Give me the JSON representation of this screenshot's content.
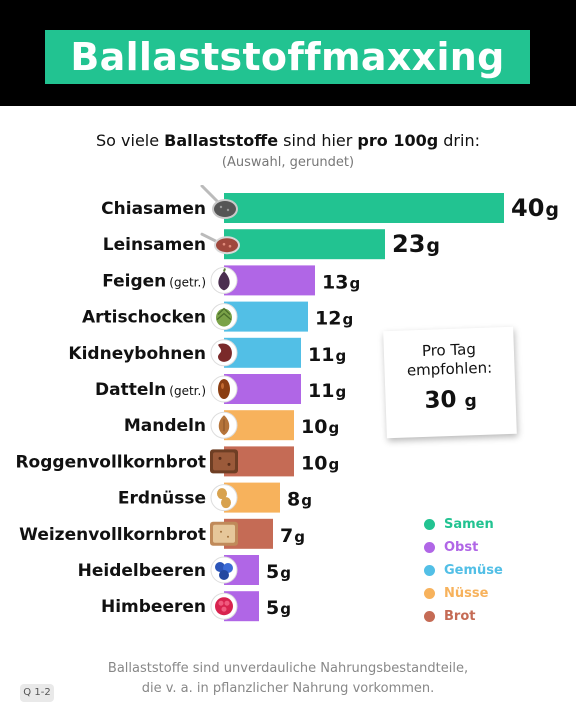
{
  "header": {
    "title": "Ballaststoffmaxxing"
  },
  "subtitle": {
    "part1": "So viele ",
    "bold1": "Ballaststoffe",
    "part2": " sind hier ",
    "bold2": "pro 100g",
    "part3": " drin:",
    "note": "(Auswahl, gerundet)"
  },
  "colors": {
    "Samen": "#22c391",
    "Obst": "#b066e6",
    "Gemüse": "#52bfe6",
    "Nüsse": "#f7b25c",
    "Brot": "#c56b55"
  },
  "chart_data": {
    "type": "bar",
    "orientation": "horizontal",
    "unit": "g",
    "categories": [
      "Chiasamen",
      "Leinsamen",
      "Feigen",
      "Artischocken",
      "Kidneybohnen",
      "Datteln",
      "Mandeln",
      "Roggenvollkornbrot",
      "Erdnüsse",
      "Weizenvollkornbrot",
      "Heidelbeeren",
      "Himbeeren"
    ],
    "qualifiers": [
      "",
      "",
      "(getr.)",
      "",
      "",
      "(getr.)",
      "",
      "",
      "",
      "",
      "",
      ""
    ],
    "values": [
      40,
      23,
      13,
      12,
      11,
      11,
      10,
      10,
      8,
      7,
      5,
      5
    ],
    "groups": [
      "Samen",
      "Samen",
      "Obst",
      "Gemüse",
      "Gemüse",
      "Obst",
      "Nüsse",
      "Brot",
      "Nüsse",
      "Brot",
      "Obst",
      "Obst"
    ],
    "icons": [
      "chia-seed-spoon-icon",
      "flaxseed-spoon-icon",
      "fig-icon",
      "artichoke-icon",
      "kidney-bean-icon",
      "date-fruit-icon",
      "almond-icon",
      "rye-bread-icon",
      "peanut-icon",
      "wheat-bread-icon",
      "blueberry-icon",
      "raspberry-icon"
    ],
    "legend": [
      "Samen",
      "Obst",
      "Gemüse",
      "Nüsse",
      "Brot"
    ],
    "legend_position": "right"
  },
  "callout": {
    "line1": "Pro Tag",
    "line2": "empfohlen:",
    "value": "30",
    "unit": "g"
  },
  "footnote": {
    "line1": "Ballaststoffe sind unverdauliche Nahrungsbestandteile,",
    "line2": "die v. a. in pflanzlicher Nahrung vorkommen."
  },
  "source_tag": "Q 1-2"
}
